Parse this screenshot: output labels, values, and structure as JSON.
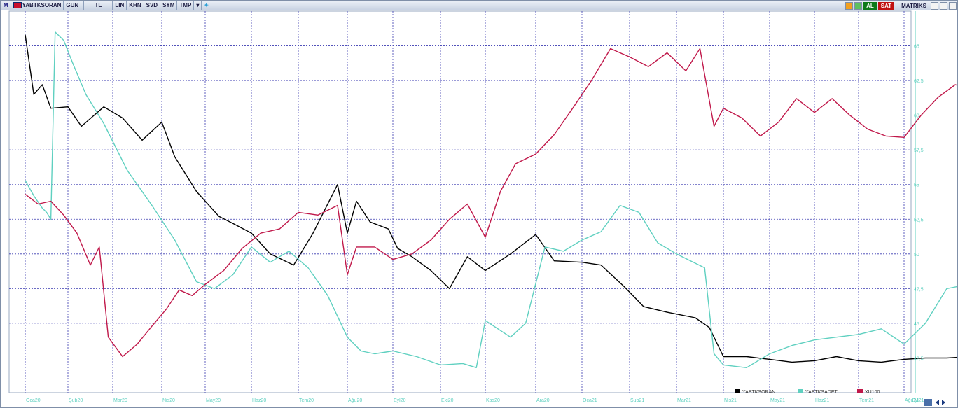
{
  "toolbar": {
    "logo": "M",
    "symbol": "YABTKSORAN",
    "period": "GUN",
    "currency": "TL",
    "buttons": [
      "LIN",
      "KHN",
      "SVD",
      "SYM",
      "TMP"
    ],
    "al_label": "AL",
    "sat_label": "SAT",
    "matriks_label": "MATRIKS"
  },
  "colors": {
    "yabtksoran": "#000000",
    "yabtksadet": "#5fd0c0",
    "xu100": "#c0184a",
    "grid": "#3a3ab0",
    "axis_text": "#5fd0c0"
  },
  "chart_data": {
    "type": "line",
    "x_ticks": [
      "Oca20",
      "Şub20",
      "Mar20",
      "Nis20",
      "May20",
      "Haz20",
      "Tem20",
      "Ağu20",
      "Eyl20",
      "Eki20",
      "Kas20",
      "Ara20",
      "Oca21",
      "Şub21",
      "Mar21",
      "Nis21",
      "May21",
      "Haz21",
      "Tem21",
      "Ağu21",
      "Eyl21"
    ],
    "y_ticks": [
      "65",
      "62,5",
      "60",
      "57,5",
      "55",
      "52,5",
      "50",
      "47,5",
      "45",
      "42,5"
    ],
    "ylim": [
      40,
      67.5
    ],
    "legend": [
      "YABTKSORAN",
      "YABTKSADET",
      "XU100"
    ],
    "series": [
      {
        "name": "YABTKSORAN",
        "x": [
          0,
          0.2,
          0.4,
          0.6,
          1,
          1.3,
          1.8,
          2.2,
          2.6,
          3,
          3.3,
          3.8,
          4.3,
          4.6,
          5,
          5.4,
          5.9,
          6.3,
          6.8,
          7.0,
          7.2,
          7.5,
          7.9,
          8.1,
          8.4,
          8.8,
          9.2,
          9.6,
          10,
          10.5,
          11,
          11.4,
          12,
          12.4,
          12.9,
          13.3,
          13.8,
          14.4,
          14.7,
          15,
          15.5,
          16,
          16.5,
          17,
          17.5,
          18,
          18.5,
          19,
          19.5,
          20,
          20.5
        ],
        "y": [
          65.8,
          61.5,
          62.2,
          60.5,
          60.6,
          59.2,
          60.6,
          59.8,
          58.2,
          59.5,
          57.0,
          54.5,
          52.7,
          52.2,
          51.5,
          50.0,
          49.2,
          51.5,
          55.0,
          51.5,
          53.8,
          52.3,
          51.8,
          50.4,
          49.8,
          48.8,
          47.5,
          49.8,
          48.8,
          50.0,
          51.4,
          49.5,
          49.4,
          49.2,
          47.6,
          46.2,
          45.8,
          45.4,
          44.7,
          42.6,
          42.6,
          42.4,
          42.2,
          42.3,
          42.6,
          42.3,
          42.2,
          42.4,
          42.5,
          42.5,
          42.6
        ]
      },
      {
        "name": "YABTKSADET",
        "x": [
          0,
          0.2,
          0.4,
          0.5,
          0.6,
          0.7,
          0.9,
          1.1,
          1.4,
          1.8,
          2.3,
          2.8,
          3.3,
          3.8,
          4.2,
          4.6,
          5.0,
          5.4,
          5.8,
          6.2,
          6.6,
          7.0,
          7.3,
          7.6,
          8.0,
          8.5,
          9.0,
          9.5,
          9.8,
          10.0,
          10.5,
          10.8,
          11.2,
          11.6,
          12.0,
          12.4,
          12.8,
          13.2,
          13.6,
          14.0,
          14.3,
          14.6,
          14.8,
          15.0,
          15.5,
          16,
          16.5,
          17,
          17.5,
          18,
          18.5,
          19,
          19.5,
          20,
          20.5
        ],
        "y": [
          55.3,
          54.2,
          53.3,
          53.0,
          52.5,
          66.0,
          65.4,
          63.8,
          61.5,
          59.4,
          56.0,
          53.5,
          51.0,
          48.0,
          47.5,
          48.5,
          50.5,
          49.4,
          50.2,
          49.0,
          47.0,
          44.0,
          43.0,
          42.8,
          43.0,
          42.6,
          42.0,
          42.1,
          41.8,
          45.2,
          44.0,
          45.0,
          50.5,
          50.2,
          51.0,
          51.6,
          53.5,
          53.0,
          50.8,
          50.0,
          49.5,
          49.0,
          42.8,
          42.0,
          41.8,
          42.8,
          43.4,
          43.8,
          44.0,
          44.2,
          44.6,
          43.5,
          45.0,
          47.5,
          47.8
        ]
      },
      {
        "name": "XU100",
        "x": [
          0,
          0.3,
          0.6,
          0.9,
          1.2,
          1.5,
          1.7,
          1.9,
          2.2,
          2.5,
          2.8,
          3.1,
          3.4,
          3.7,
          4.0,
          4.4,
          4.8,
          5.2,
          5.6,
          6.0,
          6.4,
          6.8,
          7.0,
          7.2,
          7.6,
          8.0,
          8.4,
          8.8,
          9.2,
          9.6,
          10.0,
          10.3,
          10.6,
          11.0,
          11.4,
          11.8,
          12.2,
          12.6,
          13.0,
          13.4,
          13.8,
          14.2,
          14.5,
          14.8,
          15.0,
          15.4,
          15.8,
          16.2,
          16.6,
          17.0,
          17.4,
          17.8,
          18.2,
          18.6,
          19.0,
          19.4,
          19.8,
          20.2,
          20.5
        ],
        "y": [
          54.3,
          53.6,
          53.8,
          52.8,
          51.5,
          49.2,
          50.5,
          44.0,
          42.6,
          43.5,
          44.8,
          46.0,
          47.4,
          47.0,
          47.8,
          48.8,
          50.4,
          51.5,
          51.8,
          53.0,
          52.8,
          53.5,
          48.5,
          50.5,
          50.5,
          49.6,
          50.0,
          51.0,
          52.5,
          53.6,
          51.2,
          54.5,
          56.5,
          57.2,
          58.6,
          60.5,
          62.5,
          64.8,
          64.2,
          63.5,
          64.5,
          63.2,
          64.8,
          59.2,
          60.5,
          59.8,
          58.5,
          59.5,
          61.2,
          60.2,
          61.2,
          60.0,
          59.0,
          58.5,
          58.4,
          60.0,
          61.3,
          62.2,
          61.9
        ]
      }
    ]
  }
}
